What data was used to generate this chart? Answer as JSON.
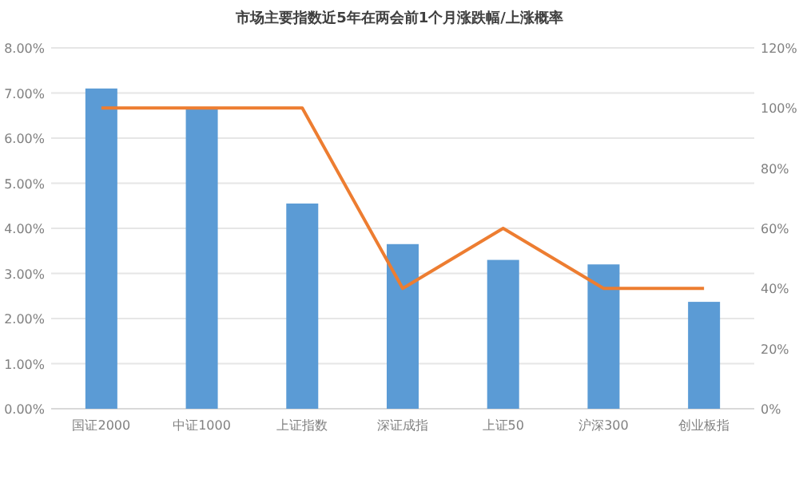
{
  "chart_data": {
    "type": "bar",
    "title": "市场主要指数近5年在两会前1个月涨跌幅/上涨概率",
    "categories": [
      "国证2000",
      "中证1000",
      "上证指数",
      "深证成指",
      "上证50",
      "沪深300",
      "创业板指"
    ],
    "series": [
      {
        "color": "#5b9bd5",
        "values": [
          7.1,
          6.65,
          4.55,
          3.65,
          3.3,
          3.2,
          2.37
        ]
      },
      {
        "type": "line",
        "axis": "y2",
        "color": "#ed7d31",
        "marker": "none",
        "values": [
          100,
          100,
          100,
          40,
          60,
          40,
          40
        ]
      }
    ],
    "ylim": [
      0,
      8
    ],
    "yticks": [
      {
        "value": 0,
        "label": "0.00%"
      },
      {
        "value": 1,
        "label": "1.00%"
      },
      {
        "value": 2,
        "label": "2.00%"
      },
      {
        "value": 3,
        "label": "3.00%"
      },
      {
        "value": 4,
        "label": "4.00%"
      },
      {
        "value": 5,
        "label": "5.00%"
      },
      {
        "value": 6,
        "label": "6.00%"
      },
      {
        "value": 7,
        "label": "7.00%"
      },
      {
        "value": 8,
        "label": "8.00%"
      }
    ],
    "y2lim": [
      0,
      120
    ],
    "y2ticks": [
      {
        "value": 0,
        "label": "0%"
      },
      {
        "value": 20,
        "label": "20%"
      },
      {
        "value": 40,
        "label": "40%"
      },
      {
        "value": 60,
        "label": "60%"
      },
      {
        "value": 80,
        "label": "80%"
      },
      {
        "value": 100,
        "label": "100%"
      },
      {
        "value": 120,
        "label": "120%"
      }
    ],
    "grid": "y"
  }
}
